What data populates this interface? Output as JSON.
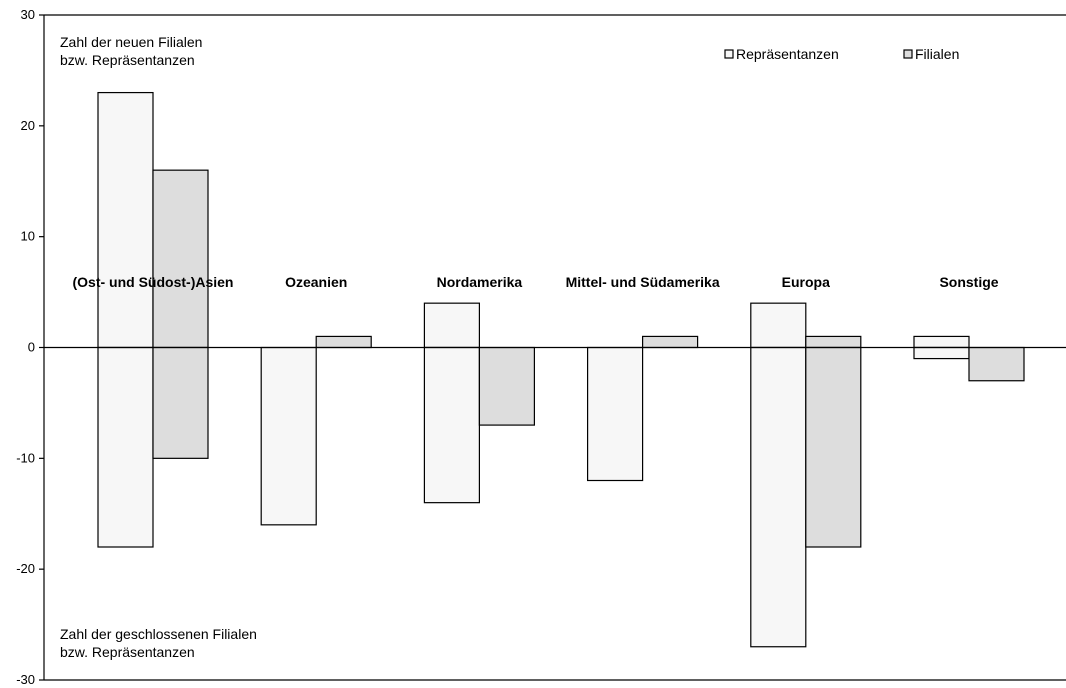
{
  "chart_data": {
    "type": "bar",
    "categories": [
      "(Ost- und Südost-)Asien",
      "Ozeanien",
      "Nordamerika",
      "Mittel- und Südamerika",
      "Europa",
      "Sonstige"
    ],
    "series": [
      {
        "name": "Repräsentanzen",
        "new": [
          23,
          0,
          4,
          0,
          4,
          1
        ],
        "closed": [
          -18,
          -16,
          -14,
          -12,
          -27,
          -1
        ],
        "color": "#f7f7f7"
      },
      {
        "name": "Filialen",
        "new": [
          16,
          1,
          0,
          1,
          1,
          0
        ],
        "closed": [
          -10,
          0,
          -7,
          0,
          -18,
          -3
        ],
        "color": "#dddddd"
      }
    ],
    "ylim": [
      -30,
      30
    ],
    "yticks": [
      -30,
      -20,
      -10,
      0,
      10,
      20,
      30
    ],
    "grid": false,
    "legend_position": "top-right",
    "annotations": {
      "top": [
        "Zahl der neuen Filialen",
        "bzw. Repräsentanzen"
      ],
      "bottom": [
        "Zahl der geschlossenen Filialen",
        "bzw. Repräsentanzen"
      ]
    }
  }
}
